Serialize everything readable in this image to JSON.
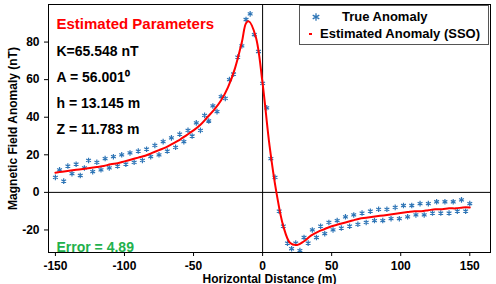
{
  "chart_data": {
    "type": "scatter",
    "xlabel": "Horizontal Distance (m)",
    "ylabel": "Magnetic Field Anomaly (nT)",
    "xlim": [
      -155,
      165
    ],
    "xticks": [
      -150,
      -100,
      -50,
      0,
      50,
      100,
      150
    ],
    "ylim": [
      -32,
      100
    ],
    "yticks": [
      -20,
      0,
      20,
      40,
      60,
      80
    ],
    "legend": "top-right",
    "annotations": [
      {
        "text": "Estimated Parameters",
        "color": "#ff0000"
      },
      {
        "text": "K=65.548 nT",
        "color": "#000000"
      },
      {
        "text": "A = 56.001⁰",
        "color": "#000000"
      },
      {
        "text": "h = 13.145 m",
        "color": "#000000"
      },
      {
        "text": "Z = 11.783 m",
        "color": "#000000"
      },
      {
        "text": "Error = 4.89",
        "color": "#22b14c"
      }
    ],
    "series": [
      {
        "name": "True Anomaly",
        "type": "scatter",
        "marker": "asterisk",
        "color": "#2e75b6",
        "x": [
          -150,
          -147,
          -144,
          -141,
          -138,
          -135,
          -132,
          -129,
          -126,
          -123,
          -120,
          -117,
          -114,
          -111,
          -108,
          -105,
          -102,
          -99,
          -96,
          -93,
          -90,
          -87,
          -84,
          -81,
          -78,
          -75,
          -72,
          -69,
          -66,
          -63,
          -60,
          -57,
          -54,
          -51,
          -48,
          -45,
          -42,
          -39,
          -36,
          -33,
          -30,
          -27,
          -24,
          -21,
          -18,
          -15,
          -12,
          -9,
          -6,
          -3,
          0,
          3,
          6,
          9,
          12,
          15,
          18,
          21,
          24,
          27,
          30,
          33,
          36,
          39,
          42,
          45,
          48,
          51,
          54,
          57,
          60,
          63,
          66,
          69,
          72,
          75,
          78,
          81,
          84,
          87,
          90,
          93,
          96,
          99,
          102,
          105,
          108,
          111,
          114,
          117,
          120,
          123,
          126,
          129,
          132,
          135,
          138,
          141,
          144,
          147,
          150
        ],
        "values": [
          8,
          12,
          6,
          14,
          10,
          15,
          9,
          13,
          17,
          11,
          16,
          12,
          18,
          13,
          19,
          14,
          20,
          15,
          21,
          16,
          22,
          17,
          23,
          19,
          25,
          20,
          27,
          22,
          29,
          24,
          31,
          27,
          33,
          30,
          37,
          33,
          41,
          38,
          46,
          43,
          51,
          50,
          60,
          63,
          72,
          78,
          92,
          95,
          84,
          75,
          58,
          45,
          18,
          8,
          -10,
          -18,
          -27,
          -30,
          -27,
          -31,
          -24,
          -27,
          -20,
          -24,
          -18,
          -22,
          -16,
          -20,
          -15,
          -19,
          -13,
          -18,
          -12,
          -17,
          -11,
          -16,
          -10,
          -15,
          -9,
          -15,
          -9,
          -14,
          -8,
          -14,
          -7,
          -13,
          -7,
          -12,
          -6,
          -12,
          -6,
          -11,
          -5,
          -11,
          -5,
          -11,
          -5,
          -10,
          -4,
          -10,
          -6
        ]
      },
      {
        "name": "Estimated Anomaly (SSO)",
        "type": "line",
        "line_style": "solid",
        "color": "#ff0000",
        "x": [
          -150,
          -145,
          -140,
          -135,
          -130,
          -125,
          -120,
          -115,
          -110,
          -105,
          -100,
          -95,
          -90,
          -85,
          -80,
          -75,
          -70,
          -65,
          -60,
          -55,
          -50,
          -45,
          -40,
          -35,
          -30,
          -25,
          -20,
          -15,
          -12,
          -10,
          -5,
          0,
          5,
          10,
          15,
          20,
          25,
          30,
          35,
          40,
          45,
          50,
          55,
          60,
          65,
          70,
          75,
          80,
          85,
          90,
          95,
          100,
          105,
          110,
          115,
          120,
          125,
          130,
          135,
          140,
          145,
          150
        ],
        "values": [
          10.5,
          11,
          11.5,
          12,
          12.5,
          13,
          13.5,
          14,
          15,
          15.5,
          16.5,
          17.5,
          18.5,
          19.5,
          21,
          22.5,
          24,
          26,
          28,
          30.5,
          33,
          36,
          40,
          44,
          49,
          56,
          66,
          80,
          90,
          91,
          83,
          58,
          25,
          0,
          -18,
          -27,
          -28,
          -26,
          -23,
          -21,
          -19.5,
          -18,
          -17,
          -16,
          -15,
          -14,
          -13.5,
          -13,
          -12.5,
          -12,
          -11.5,
          -11,
          -10.5,
          -10,
          -10,
          -9.5,
          -9,
          -9,
          -8.5,
          -8.5,
          -8,
          -8
        ]
      }
    ]
  }
}
